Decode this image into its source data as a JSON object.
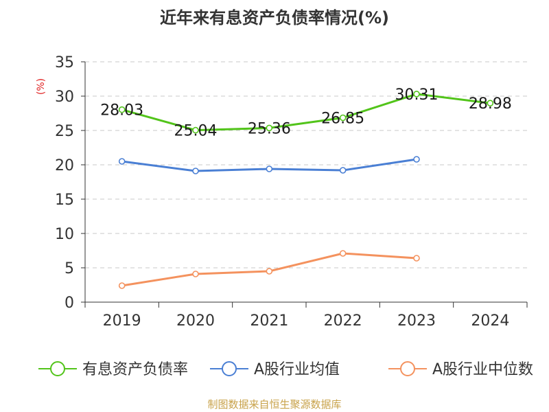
{
  "chart_data": {
    "type": "line",
    "title": "近年来有息资产负债率情况(%)",
    "ylabel": "(%)",
    "xlabel": "",
    "categories": [
      "2019",
      "2020",
      "2021",
      "2022",
      "2023",
      "2024"
    ],
    "ylim": [
      0,
      35
    ],
    "yticks": [
      0,
      5,
      10,
      15,
      20,
      25,
      30,
      35
    ],
    "grid": true,
    "legend_position": "bottom",
    "series": [
      {
        "name": "有息资产负债率",
        "color": "#52c41a",
        "values": [
          28.03,
          25.04,
          25.36,
          26.85,
          30.31,
          28.98
        ],
        "labels": [
          "28.03",
          "25.04",
          "25.36",
          "26.85",
          "30.31",
          "28.98"
        ]
      },
      {
        "name": "A股行业均值",
        "color": "#4a7fd4",
        "values": [
          20.5,
          19.1,
          19.4,
          19.2,
          20.8,
          null
        ]
      },
      {
        "name": "A股行业中位数",
        "color": "#f4925e",
        "values": [
          2.4,
          4.1,
          4.5,
          7.1,
          6.4,
          null
        ]
      }
    ]
  },
  "footer": {
    "source": "制图数据来自恒生聚源数据库"
  }
}
